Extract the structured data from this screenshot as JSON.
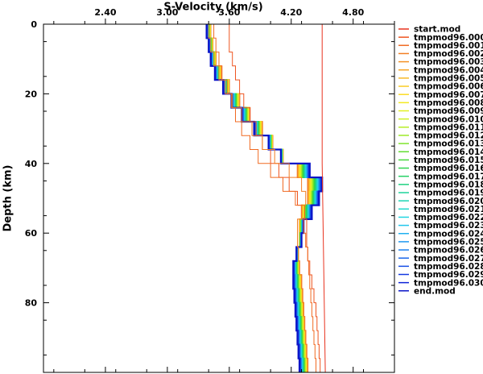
{
  "chart_data": {
    "type": "line",
    "title": "",
    "xlabel": "S-Velocity (km/s)",
    "ylabel": "Depth (km)",
    "xlim": [
      1.8,
      5.2
    ],
    "ylim": [
      100,
      0
    ],
    "x_axis_position": "top",
    "y_axis_inverted": true,
    "grid": false,
    "legend_position": "right",
    "x_ticks": [
      2.4,
      3.0,
      3.6,
      4.2,
      4.8
    ],
    "x_tick_labels": [
      "2.40",
      "3.00",
      "3.60",
      "4.20",
      "4.80"
    ],
    "y_ticks": [
      0,
      20,
      40,
      60,
      80
    ],
    "y_tick_labels": [
      "0",
      "20",
      "40",
      "60",
      "80"
    ],
    "series": [
      {
        "name": "start.mod",
        "color": "#e8321e"
      },
      {
        "name": "tmpmod96.000",
        "color": "#ee5520"
      },
      {
        "name": "tmpmod96.001",
        "color": "#f06a22"
      },
      {
        "name": "tmpmod96.002",
        "color": "#f27e24"
      },
      {
        "name": "tmpmod96.003",
        "color": "#f49226"
      },
      {
        "name": "tmpmod96.004",
        "color": "#f6a628"
      },
      {
        "name": "tmpmod96.005",
        "color": "#f8ba28"
      },
      {
        "name": "tmpmod96.006",
        "color": "#facc26"
      },
      {
        "name": "tmpmod96.007",
        "color": "#fcdc24"
      },
      {
        "name": "tmpmod96.008",
        "color": "#f4ea22"
      },
      {
        "name": "tmpmod96.009",
        "color": "#e2f022"
      },
      {
        "name": "tmpmod96.010",
        "color": "#cef024"
      },
      {
        "name": "tmpmod96.011",
        "color": "#b6ee26"
      },
      {
        "name": "tmpmod96.012",
        "color": "#9cea28"
      },
      {
        "name": "tmpmod96.013",
        "color": "#80e42c"
      },
      {
        "name": "tmpmod96.014",
        "color": "#62de32"
      },
      {
        "name": "tmpmod96.015",
        "color": "#46d83c"
      },
      {
        "name": "tmpmod96.016",
        "color": "#30d44e"
      },
      {
        "name": "tmpmod96.017",
        "color": "#26d266"
      },
      {
        "name": "tmpmod96.018",
        "color": "#20d280"
      },
      {
        "name": "tmpmod96.019",
        "color": "#1ed49a"
      },
      {
        "name": "tmpmod96.020",
        "color": "#1ed6b4"
      },
      {
        "name": "tmpmod96.021",
        "color": "#20d8cc"
      },
      {
        "name": "tmpmod96.022",
        "color": "#22d6e0"
      },
      {
        "name": "tmpmod96.023",
        "color": "#22c6ec"
      },
      {
        "name": "tmpmod96.024",
        "color": "#20b0f0"
      },
      {
        "name": "tmpmod96.025",
        "color": "#1e98f0"
      },
      {
        "name": "tmpmod96.026",
        "color": "#1c80ee"
      },
      {
        "name": "tmpmod96.027",
        "color": "#1a68ea"
      },
      {
        "name": "tmpmod96.028",
        "color": "#1850e6"
      },
      {
        "name": "tmpmod96.029",
        "color": "#1438e0"
      },
      {
        "name": "tmpmod96.030",
        "color": "#1024d8"
      },
      {
        "name": "end.mod",
        "color": "#0a14c8"
      }
    ],
    "start_model": {
      "depth": [
        0,
        20,
        40,
        60,
        80,
        100
      ],
      "velocity": [
        4.5,
        4.5,
        4.5,
        4.51,
        4.52,
        4.53
      ]
    },
    "reference_models": [
      {
        "series": "tmpmod96.000",
        "depth": [
          0,
          4,
          8,
          12,
          16,
          20,
          24,
          28,
          32,
          36,
          40,
          44,
          48,
          52,
          56,
          60,
          64,
          68,
          72,
          76,
          80,
          84,
          88,
          92,
          96,
          100
        ],
        "velocity": [
          3.6,
          3.6,
          3.63,
          3.66,
          3.7,
          3.74,
          3.8,
          3.86,
          3.92,
          4.0,
          4.08,
          4.18,
          4.26,
          4.33,
          4.35,
          4.35,
          4.36,
          4.38,
          4.4,
          4.42,
          4.44,
          4.45,
          4.46,
          4.47,
          4.48,
          4.48
        ]
      },
      {
        "series": "tmpmod96.001",
        "depth": [
          0,
          4,
          8,
          12,
          16,
          20,
          24,
          28,
          32,
          36,
          40,
          44,
          48,
          52,
          56,
          60,
          64,
          68,
          72,
          76,
          80,
          84,
          88,
          92,
          96,
          100
        ],
        "velocity": [
          3.45,
          3.47,
          3.5,
          3.53,
          3.58,
          3.62,
          3.66,
          3.72,
          3.8,
          3.88,
          4.0,
          4.12,
          4.24,
          4.3,
          4.32,
          4.34,
          4.36,
          4.37,
          4.38,
          4.39,
          4.4,
          4.41,
          4.42,
          4.43,
          4.44,
          4.44
        ]
      },
      {
        "series": "tmpmod96.002",
        "depth": [
          0,
          4,
          8,
          12,
          16,
          20,
          24,
          28,
          32,
          36,
          40,
          44,
          48,
          52,
          56,
          60,
          64,
          68,
          72,
          76,
          80,
          84,
          88,
          92,
          96,
          100
        ],
        "velocity": [
          3.4,
          3.42,
          3.45,
          3.5,
          3.56,
          3.63,
          3.72,
          3.82,
          3.92,
          4.04,
          4.18,
          4.3,
          4.34,
          4.3,
          4.26,
          4.26,
          4.27,
          4.28,
          4.3,
          4.31,
          4.32,
          4.33,
          4.34,
          4.35,
          4.36,
          4.36
        ]
      }
    ],
    "inversion_models": {
      "count": 31,
      "depth": [
        0,
        4,
        8,
        12,
        16,
        20,
        24,
        28,
        32,
        36,
        40,
        44,
        48,
        52,
        56,
        60,
        64,
        68,
        72,
        76,
        80,
        84,
        88,
        92,
        96,
        100
      ],
      "velocity_first": [
        3.42,
        3.44,
        3.47,
        3.52,
        3.6,
        3.7,
        3.8,
        3.92,
        4.02,
        4.12,
        4.26,
        4.36,
        4.36,
        4.3,
        4.28,
        4.28,
        4.27,
        4.28,
        4.3,
        4.31,
        4.32,
        4.33,
        4.34,
        4.35,
        4.36,
        4.37
      ],
      "velocity_last": [
        3.38,
        3.4,
        3.42,
        3.46,
        3.54,
        3.62,
        3.72,
        3.84,
        3.98,
        4.1,
        4.38,
        4.5,
        4.47,
        4.4,
        4.32,
        4.3,
        4.25,
        4.22,
        4.22,
        4.23,
        4.24,
        4.25,
        4.26,
        4.27,
        4.28,
        4.28
      ]
    }
  }
}
